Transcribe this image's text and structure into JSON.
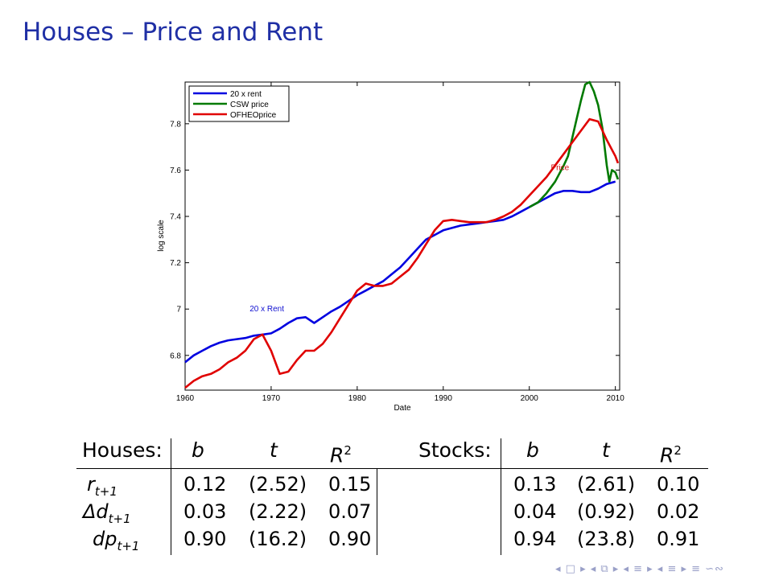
{
  "slide": {
    "title": "Houses – Price and Rent"
  },
  "chart_data": {
    "type": "line",
    "xlabel": "Date",
    "ylabel": "log scale",
    "xlim": [
      1960,
      2010.5
    ],
    "ylim": [
      6.65,
      7.98
    ],
    "xticks": [
      1960,
      1970,
      1980,
      1990,
      2000,
      2010
    ],
    "xtick_labels": [
      "1960",
      "1970",
      "1980",
      "1990",
      "2000",
      "2010"
    ],
    "yticks": [
      6.8,
      7,
      7.2,
      7.4,
      7.6,
      7.8
    ],
    "ytick_labels": [
      "6.8",
      "7",
      "7.2",
      "7.4",
      "7.6",
      "7.8"
    ],
    "legend": [
      "20 x rent",
      "CSW price",
      "OFHEOprice"
    ],
    "legend_position": "top-left",
    "annotations": [
      {
        "text": "20 x Rent",
        "x": 1967.5,
        "y": 6.99,
        "color": "#1010d0"
      },
      {
        "text": "Price",
        "x": 2002.5,
        "y": 7.6,
        "color": "#d01010"
      }
    ],
    "series": [
      {
        "name": "20 x rent",
        "color": "#0000e0",
        "x": [
          1960,
          1961,
          1962,
          1963,
          1964,
          1965,
          1966,
          1967,
          1968,
          1969,
          1970,
          1971,
          1972,
          1973,
          1974,
          1975,
          1976,
          1977,
          1978,
          1979,
          1980,
          1981,
          1982,
          1983,
          1984,
          1985,
          1986,
          1987,
          1988,
          1989,
          1990,
          1991,
          1992,
          1993,
          1994,
          1995,
          1996,
          1997,
          1998,
          1999,
          2000,
          2001,
          2002,
          2003,
          2004,
          2005,
          2006,
          2007,
          2008,
          2009,
          2010
        ],
        "y": [
          6.77,
          6.8,
          6.82,
          6.84,
          6.855,
          6.865,
          6.87,
          6.875,
          6.885,
          6.89,
          6.895,
          6.915,
          6.94,
          6.96,
          6.965,
          6.94,
          6.965,
          6.99,
          7.01,
          7.035,
          7.06,
          7.08,
          7.1,
          7.12,
          7.15,
          7.18,
          7.22,
          7.26,
          7.3,
          7.32,
          7.34,
          7.35,
          7.36,
          7.365,
          7.37,
          7.375,
          7.38,
          7.385,
          7.4,
          7.42,
          7.44,
          7.46,
          7.48,
          7.5,
          7.51,
          7.51,
          7.505,
          7.505,
          7.52,
          7.54,
          7.55
        ]
      },
      {
        "name": "CSW price",
        "color": "#007a00",
        "x": [
          2000,
          2001,
          2002,
          2003,
          2004,
          2004.5,
          2005,
          2005.5,
          2006,
          2006.5,
          2007,
          2007.5,
          2008,
          2008.5,
          2009,
          2009.3,
          2009.6,
          2010,
          2010.3
        ],
        "y": [
          7.44,
          7.46,
          7.5,
          7.55,
          7.62,
          7.66,
          7.74,
          7.82,
          7.9,
          7.97,
          7.98,
          7.94,
          7.88,
          7.78,
          7.62,
          7.55,
          7.6,
          7.59,
          7.56
        ]
      },
      {
        "name": "OFHEOprice",
        "color": "#e00000",
        "x": [
          1960,
          1961,
          1962,
          1963,
          1964,
          1965,
          1966,
          1967,
          1968,
          1969,
          1970,
          1971,
          1972,
          1973,
          1974,
          1975,
          1976,
          1977,
          1978,
          1979,
          1980,
          1981,
          1982,
          1983,
          1984,
          1985,
          1986,
          1987,
          1988,
          1989,
          1990,
          1991,
          1992,
          1993,
          1994,
          1995,
          1996,
          1997,
          1998,
          1999,
          2000,
          2001,
          2002,
          2003,
          2004,
          2005,
          2006,
          2007,
          2008,
          2009,
          2010,
          2010.3
        ],
        "y": [
          6.66,
          6.69,
          6.71,
          6.72,
          6.74,
          6.77,
          6.79,
          6.82,
          6.87,
          6.89,
          6.82,
          6.72,
          6.73,
          6.78,
          6.82,
          6.82,
          6.85,
          6.9,
          6.96,
          7.02,
          7.08,
          7.11,
          7.1,
          7.1,
          7.11,
          7.14,
          7.17,
          7.22,
          7.28,
          7.34,
          7.38,
          7.385,
          7.38,
          7.375,
          7.375,
          7.375,
          7.385,
          7.4,
          7.42,
          7.45,
          7.49,
          7.53,
          7.57,
          7.62,
          7.67,
          7.72,
          7.77,
          7.82,
          7.81,
          7.73,
          7.66,
          7.63
        ]
      }
    ]
  },
  "table": {
    "houses": {
      "label": "Houses:",
      "cols": [
        "b",
        "t",
        "R"
      ],
      "r2_sup": "2",
      "rows": [
        {
          "var": "r",
          "sub": "t+1",
          "vals": [
            "0.12",
            "(2.52)",
            "0.15"
          ]
        },
        {
          "var": "Δd",
          "sub": "t+1",
          "vals": [
            "0.03",
            "(2.22)",
            "0.07"
          ]
        },
        {
          "var": "dp",
          "sub": "t+1",
          "vals": [
            "0.90",
            "(16.2)",
            "0.90"
          ]
        }
      ]
    },
    "stocks": {
      "label": "Stocks:",
      "cols": [
        "b",
        "t",
        "R"
      ],
      "r2_sup": "2",
      "rows": [
        {
          "vals": [
            "0.13",
            "(2.61)",
            "0.10"
          ]
        },
        {
          "vals": [
            "0.04",
            "(0.92)",
            "0.02"
          ]
        },
        {
          "vals": [
            "0.94",
            "(23.8)",
            "0.91"
          ]
        }
      ]
    }
  },
  "nav": {
    "symbols": "◂ □ ▸ ◂ ⧉ ▸ ◂ ≡ ▸ ◂ ≡ ▸  ≡  ∽∾"
  }
}
